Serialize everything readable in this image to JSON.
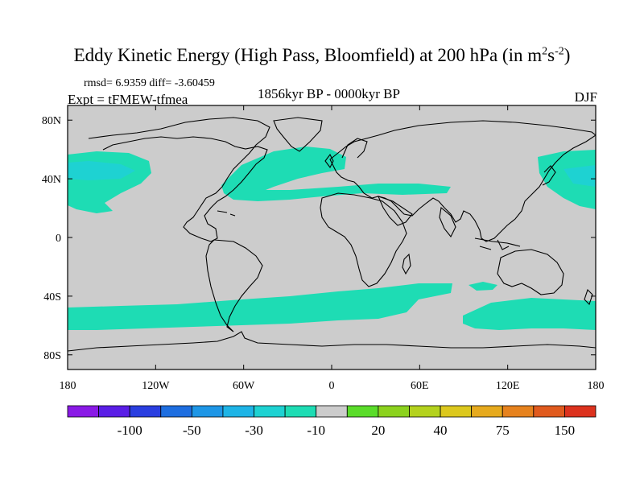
{
  "title_main": "Eddy Kinetic Energy (High Pass, Bloomfield) at 200 hPa (in m",
  "title_sup1": "2",
  "title_mid": "s",
  "title_sup2": "-2",
  "title_end": ")",
  "stats": "rmsd= 6.9359 diff= -3.60459",
  "experiment": "Expt = tFMEW-tfmea",
  "period": "1856kyr BP - 0000kyr BP",
  "season": "DJF",
  "lat_labels": [
    "80N",
    "40N",
    "0",
    "40S",
    "80S"
  ],
  "lat_values": [
    80,
    40,
    0,
    -40,
    -80
  ],
  "lon_labels": [
    "180",
    "120W",
    "60W",
    "0",
    "60E",
    "120E",
    "180"
  ],
  "lon_values": [
    -180,
    -120,
    -60,
    0,
    60,
    120,
    180
  ],
  "colorbar": {
    "colors": [
      "#8a1ae6",
      "#5a1ee6",
      "#2a3ee0",
      "#1e6ee0",
      "#1e96e6",
      "#1eb4e6",
      "#1ed2d2",
      "#1edcb4",
      "#cccccc",
      "#5adc2a",
      "#8cd21e",
      "#b4d21e",
      "#dcc81e",
      "#e6aa1e",
      "#e6821e",
      "#e05a1e",
      "#dc321e"
    ],
    "labels": [
      "-100",
      "-50",
      "-30",
      "-10",
      "20",
      "40",
      "75",
      "150"
    ]
  },
  "colors": {
    "background": "#cccccc",
    "anomaly_fill": "#1edcb4",
    "anomaly_fill_dark": "#1ed2d2",
    "coast": "#000000"
  }
}
